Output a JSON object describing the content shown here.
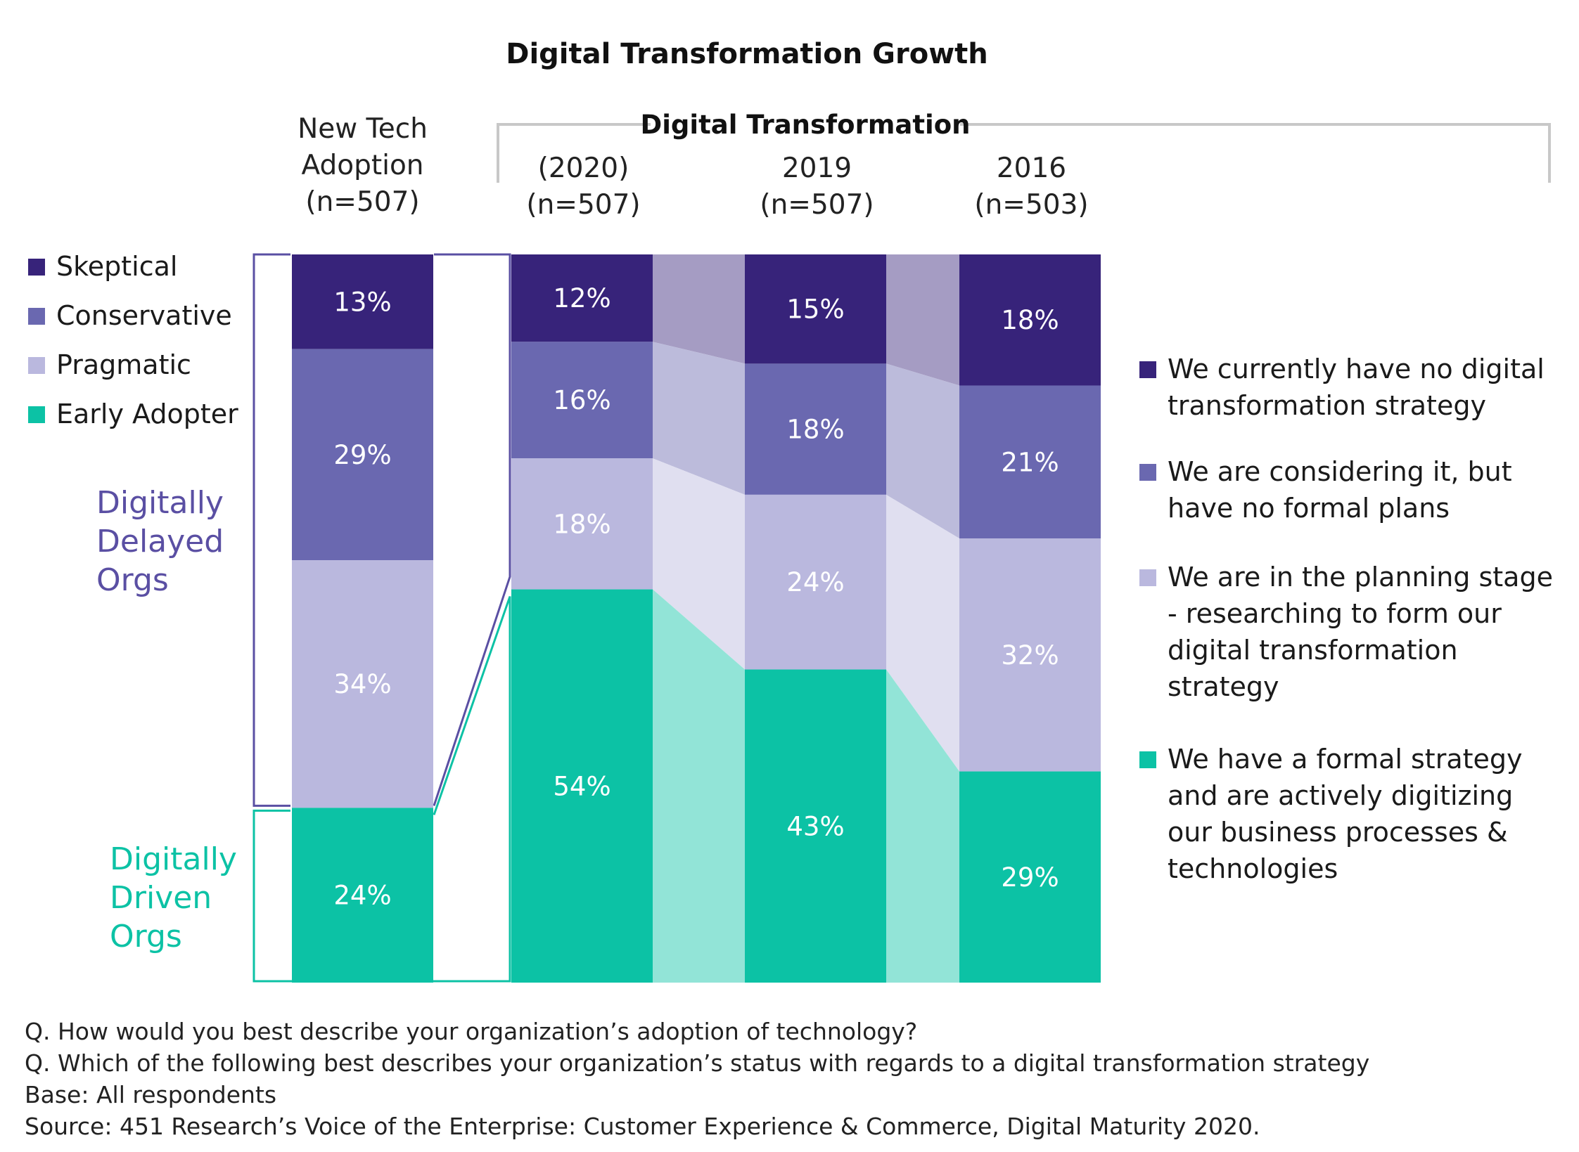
{
  "chart_data": {
    "type": "bar",
    "stacked": true,
    "title": "Digital Transformation Growth",
    "group_title": "Digital Transformation",
    "categories": [
      [
        "New Tech",
        "Adoption",
        "(n=507)"
      ],
      [
        "(2020)",
        "(n=507)"
      ],
      [
        "2019",
        "(n=507)"
      ],
      [
        "2016",
        "(n=503)"
      ]
    ],
    "adoption_series": [
      {
        "name": "Skeptical",
        "color": "#37237A",
        "value": 13
      },
      {
        "name": "Conservative",
        "color": "#6A68B0",
        "value": 29
      },
      {
        "name": "Pragmatic",
        "color": "#BAB8DE",
        "value": 34
      },
      {
        "name": "Early Adopter",
        "color": "#0CC2A5",
        "value": 24
      }
    ],
    "transformation_series": [
      {
        "name": [
          "We currently have no digital",
          "transformation strategy"
        ],
        "color": "#37237A",
        "values": [
          12,
          15,
          18
        ]
      },
      {
        "name": [
          "We are considering it, but",
          "have no formal plans"
        ],
        "color": "#6A68B0",
        "values": [
          16,
          18,
          21
        ]
      },
      {
        "name": [
          "We are in the planning stage",
          "- researching to form our",
          "digital transformation",
          "strategy"
        ],
        "color": "#BAB8DE",
        "values": [
          18,
          24,
          32
        ]
      },
      {
        "name": [
          "We have a formal strategy",
          "and are actively digitizing",
          "our business processes &",
          "technologies"
        ],
        "color": "#0CC2A5",
        "values": [
          54,
          43,
          29
        ]
      }
    ],
    "value_suffix": "%",
    "groups": [
      {
        "label": [
          "Digitally",
          "Delayed",
          "Orgs"
        ],
        "color": "#5A4FA3"
      },
      {
        "label": [
          "Digitally",
          "Driven",
          "Orgs"
        ],
        "color": "#0CC2A5"
      }
    ],
    "notes": [
      "Q. How would you best describe your organization’s adoption of technology?",
      "Q. Which of the following best describes your organization’s status with regards to a digital transformation strategy",
      "Base: All respondents",
      "Source: 451 Research’s Voice of the Enterprise: Customer Experience & Commerce, Digital Maturity 2020."
    ]
  }
}
